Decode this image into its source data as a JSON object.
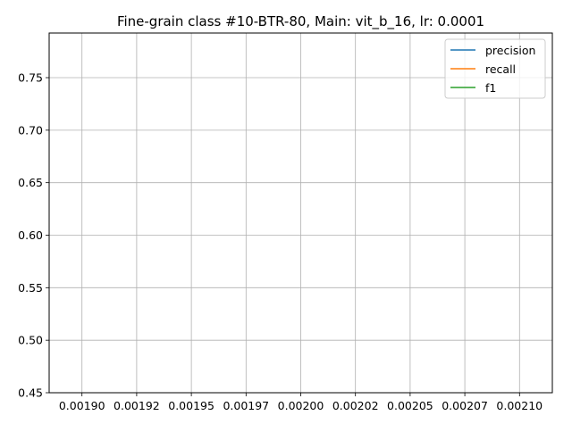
{
  "chart_data": {
    "type": "line",
    "title": "Fine-grain class #10-BTR-80, Main: vit_b_16, lr: 0.0001",
    "xlabel": "",
    "ylabel": "",
    "xlim": [
      0.001885,
      0.002115
    ],
    "ylim": [
      0.45,
      0.7925
    ],
    "grid": true,
    "legend": "top-right",
    "x_ticks": [
      0.0019,
      0.001925,
      0.00195,
      0.001975,
      0.002,
      0.002025,
      0.00205,
      0.002075,
      0.0021
    ],
    "x_tick_labels": [
      "0.00190",
      "0.00192",
      "0.00195",
      "0.00197",
      "0.00200",
      "0.00202",
      "0.00205",
      "0.00207",
      "0.00210"
    ],
    "y_ticks": [
      0.45,
      0.5,
      0.55,
      0.6,
      0.65,
      0.7,
      0.75
    ],
    "y_tick_labels": [
      "0.45",
      "0.50",
      "0.55",
      "0.60",
      "0.65",
      "0.70",
      "0.75"
    ],
    "series": [
      {
        "name": "precision",
        "color": "#1f77b4",
        "x": [],
        "y": []
      },
      {
        "name": "recall",
        "color": "#ff7f0e",
        "x": [],
        "y": []
      },
      {
        "name": "f1",
        "color": "#2ca02c",
        "x": [],
        "y": []
      }
    ]
  }
}
